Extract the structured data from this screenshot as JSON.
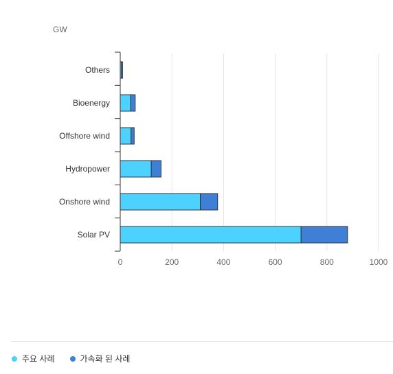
{
  "chart_data": {
    "type": "bar",
    "orientation": "horizontal",
    "stacked": true,
    "unit_label": "GW",
    "categories": [
      "Others",
      "Bioenergy",
      "Offshore wind",
      "Hydropower",
      "Onshore wind",
      "Solar PV"
    ],
    "series": [
      {
        "name": "주요 사례",
        "color": "#4dd2ff",
        "values": [
          5,
          40,
          42,
          120,
          310,
          700
        ]
      },
      {
        "name": "가속화 된 사례",
        "color": "#3f7fd6",
        "values": [
          4,
          18,
          12,
          38,
          67,
          180
        ]
      }
    ],
    "xlim": [
      0,
      1000
    ],
    "xticks": [
      0,
      200,
      400,
      600,
      800,
      1000
    ],
    "grid": true,
    "legend_position": "bottom-left"
  }
}
